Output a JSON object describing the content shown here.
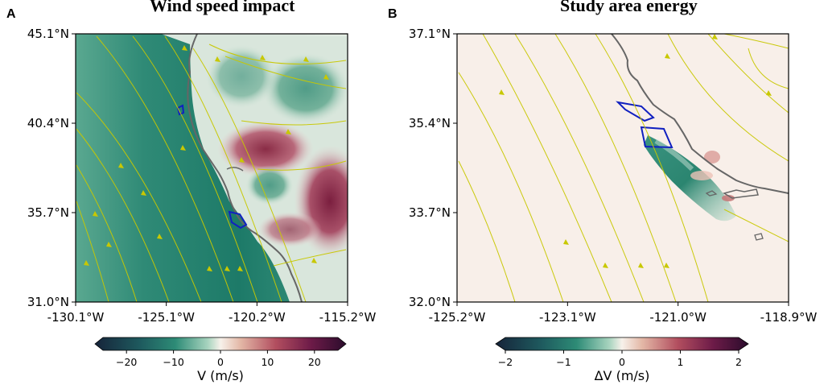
{
  "figure": {
    "title_left": "Wind speed impact",
    "title_right": "Study area energy"
  },
  "chart_data": [
    {
      "panel": "A",
      "type": "heatmap",
      "subtype": "map-with-streamlines",
      "x_ticks": [
        "-130.1°W",
        "-125.1°W",
        "-120.2°W",
        "-115.2°W"
      ],
      "y_ticks": [
        "45.1°N",
        "40.4°N",
        "35.7°N",
        "31.0°N"
      ],
      "xlim": [
        -130.1,
        -115.2
      ],
      "ylim": [
        31.0,
        45.1
      ],
      "colorbar": {
        "label": "V (m/s)",
        "ticks": [
          "−20",
          "−10",
          "0",
          "10",
          "20"
        ],
        "range": [
          -25,
          25
        ],
        "colormap": "diverging teal-white-maroon"
      },
      "colors": {
        "negative": "#1f7a6a",
        "neutral": "#f5efe8",
        "positive": "#7a1f3a",
        "streamlines": "#c8c800",
        "coast": "#666666",
        "study_area": "#1020c0"
      }
    },
    {
      "panel": "B",
      "type": "heatmap",
      "subtype": "map-with-streamlines",
      "x_ticks": [
        "-125.2°W",
        "-123.1°W",
        "-121.0°W",
        "-118.9°W"
      ],
      "y_ticks": [
        "37.1°N",
        "35.4°N",
        "33.7°N",
        "32.0°N"
      ],
      "xlim": [
        -125.2,
        -118.9
      ],
      "ylim": [
        32.0,
        37.1
      ],
      "colorbar": {
        "label": "ΔV (m/s)",
        "ticks": [
          "−2",
          "−1",
          "0",
          "1",
          "2"
        ],
        "range": [
          -2,
          2
        ],
        "colormap": "diverging teal-white-maroon"
      },
      "colors": {
        "negative": "#1f7a6a",
        "neutral": "#f7ece6",
        "positive": "#7a1f3a",
        "streamlines": "#c8c800",
        "coast": "#666666",
        "study_area": "#1020c0"
      }
    }
  ]
}
